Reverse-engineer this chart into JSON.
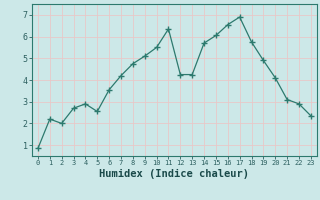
{
  "x": [
    0,
    1,
    2,
    3,
    4,
    5,
    6,
    7,
    8,
    9,
    10,
    11,
    12,
    13,
    14,
    15,
    16,
    17,
    18,
    19,
    20,
    21,
    22,
    23
  ],
  "y": [
    0.85,
    2.2,
    2.0,
    2.7,
    2.9,
    2.55,
    3.55,
    4.2,
    4.75,
    5.1,
    5.5,
    6.35,
    4.25,
    4.25,
    5.7,
    6.05,
    6.55,
    6.9,
    5.75,
    4.9,
    4.1,
    3.1,
    2.9,
    2.35
  ],
  "line_color": "#2d7a6e",
  "marker": "+",
  "marker_size": 4,
  "background_color": "#cce8e8",
  "grid_color": "#e8c8c8",
  "xlabel": "Humidex (Indice chaleur)",
  "xlabel_fontsize": 7.5,
  "ylabel_ticks": [
    1,
    2,
    3,
    4,
    5,
    6,
    7
  ],
  "ylim": [
    0.5,
    7.5
  ],
  "xlim": [
    -0.5,
    23.5
  ],
  "tick_color": "#2d6060",
  "spine_color": "#2d7a6e",
  "label_color": "#1a4a4a",
  "tick_fontsize": 5.0,
  "ytick_fontsize": 6.0
}
